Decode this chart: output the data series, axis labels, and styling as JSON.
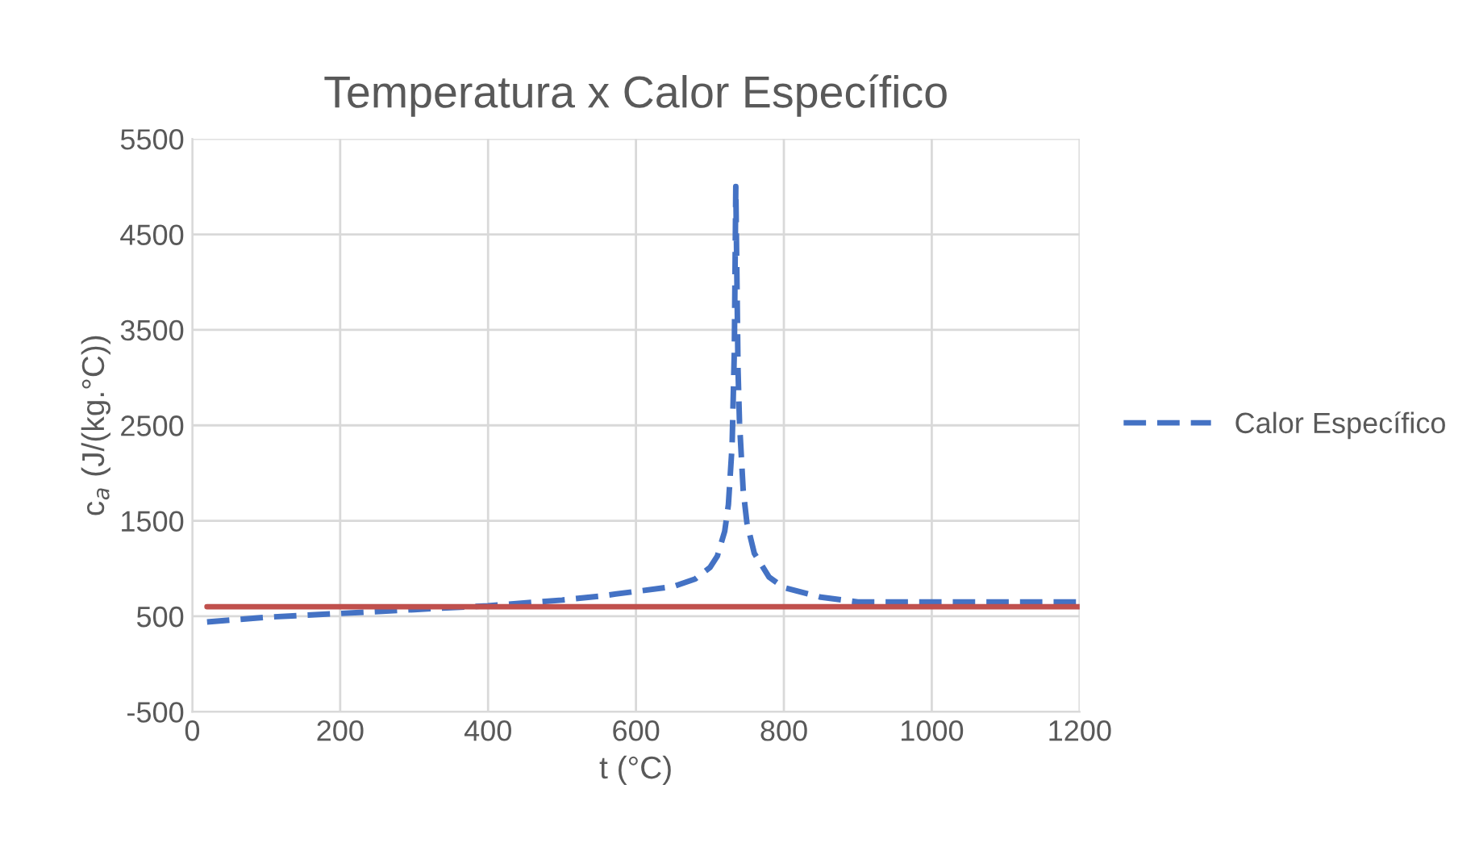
{
  "chart_data": {
    "type": "line",
    "title": "Temperatura x Calor Específico",
    "xlabel": "t (°C)",
    "ylabel": "c$_{a}$ (J/(kg.°C))",
    "series": [
      {
        "name": "Calor Específico",
        "color": "#4472c4",
        "line_style": "dashed",
        "x": [
          20,
          100,
          200,
          300,
          400,
          500,
          550,
          600,
          650,
          680,
          700,
          710,
          720,
          725,
          730,
          733,
          735,
          738,
          740,
          745,
          750,
          760,
          780,
          800,
          850,
          900,
          1200
        ],
        "values": [
          440,
          490,
          530,
          570,
          610,
          670,
          710,
          760,
          810,
          890,
          1010,
          1130,
          1390,
          1670,
          2290,
          3270,
          5000,
          3090,
          2530,
          1820,
          1480,
          1160,
          910,
          800,
          700,
          650,
          650
        ]
      },
      {
        "color": "#c0504d",
        "line_style": "solid",
        "x": [
          20,
          1200
        ],
        "values": [
          600,
          600
        ]
      }
    ],
    "xlim": [
      0,
      1200
    ],
    "xticks": [
      0,
      200,
      400,
      600,
      800,
      1000,
      1200
    ],
    "ylim": [
      -500,
      5500
    ],
    "yticks": [
      -500,
      500,
      1500,
      2500,
      3500,
      4500,
      5500
    ],
    "grid": true,
    "legend": "right",
    "marker": "none"
  }
}
